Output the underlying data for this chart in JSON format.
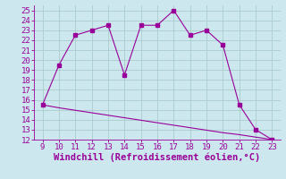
{
  "x": [
    9,
    10,
    11,
    12,
    13,
    14,
    15,
    16,
    17,
    18,
    19,
    20,
    21,
    22,
    23
  ],
  "y_upper": [
    15.5,
    19.5,
    22.5,
    23.0,
    23.5,
    18.5,
    23.5,
    23.5,
    25.0,
    22.5,
    23.0,
    21.5,
    15.5,
    13.0,
    12.0
  ],
  "y_lower": [
    15.5,
    15.2,
    14.95,
    14.7,
    14.45,
    14.2,
    13.95,
    13.7,
    13.45,
    13.2,
    12.95,
    12.7,
    12.5,
    12.25,
    12.0
  ],
  "line_color": "#990099",
  "bg_color": "#cce8ee",
  "grid_color": "#aacccc",
  "xlabel": "Windchill (Refroidissement éolien,°C)",
  "xlim": [
    8.5,
    23.5
  ],
  "ylim": [
    12,
    25.5
  ],
  "xticks": [
    9,
    10,
    11,
    12,
    13,
    14,
    15,
    16,
    17,
    18,
    19,
    20,
    21,
    22,
    23
  ],
  "yticks": [
    12,
    13,
    14,
    15,
    16,
    17,
    18,
    19,
    20,
    21,
    22,
    23,
    24,
    25
  ],
  "tick_fontsize": 6.5,
  "xlabel_fontsize": 7.5
}
